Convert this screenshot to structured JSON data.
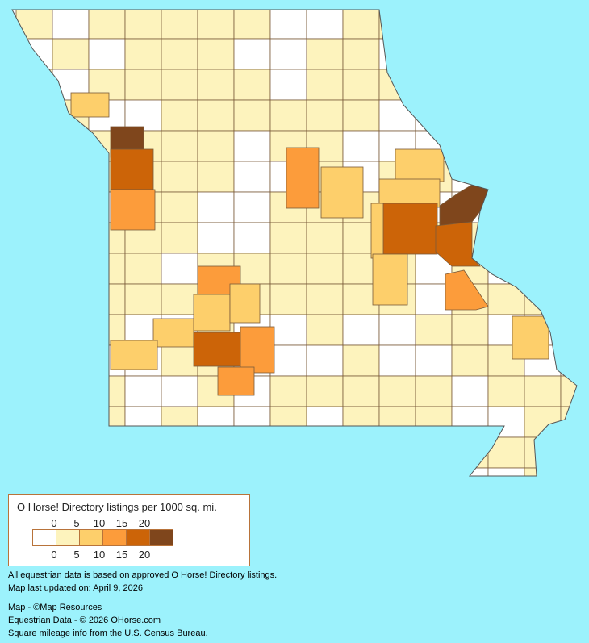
{
  "legend": {
    "title": "O Horse! Directory listings per 1000 sq. mi.",
    "ticks_top": [
      "0",
      "5",
      "10",
      "15",
      "20"
    ],
    "ticks_bottom": [
      "0",
      "5",
      "10",
      "15",
      "20"
    ],
    "colors": [
      "#ffffff",
      "#fdf3bd",
      "#fdcf6b",
      "#fc9c3b",
      "#cc6408",
      "#7f461c"
    ],
    "border_color": "#b8733a"
  },
  "notes": {
    "data_basis": "All equestrian data is based on approved O Horse! Directory listings.",
    "updated": "Map last updated on: April 9, 2026"
  },
  "credits": {
    "map": "Map - ©Map Resources",
    "data": "Equestrian Data - © 2026 OHorse.com",
    "mileage": "Square mileage info from the U.S. Census Bureau."
  },
  "background_color": "#9cf2fc"
}
